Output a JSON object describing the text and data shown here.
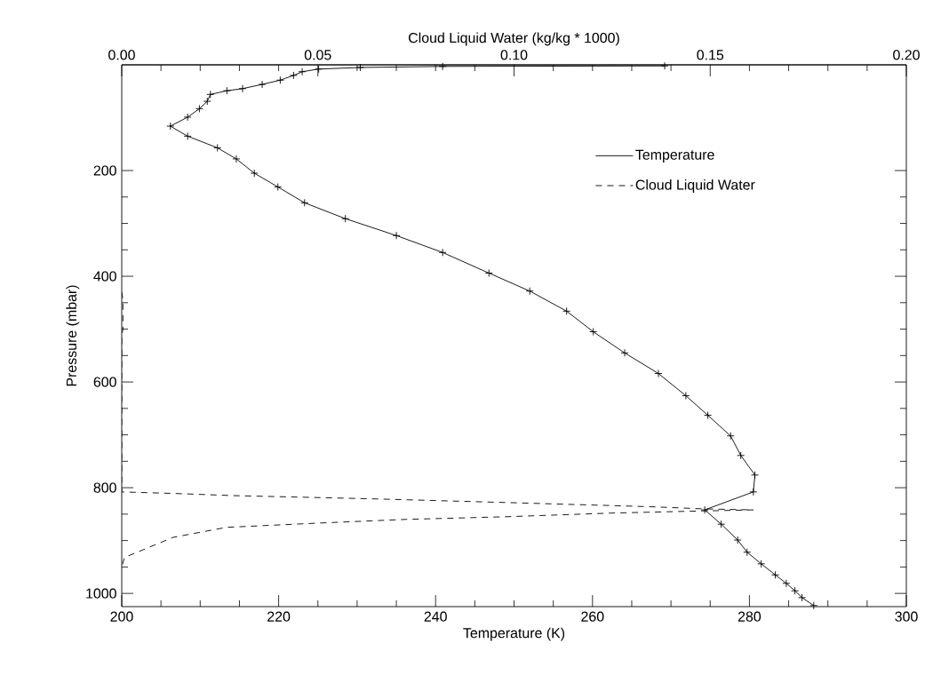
{
  "chart_data": {
    "type": "line",
    "xlabel": "Temperature (K)",
    "ylabel": "Pressure (mbar)",
    "x2label": "Cloud Liquid Water (kg/kg * 1000)",
    "xlim": [
      200,
      300
    ],
    "xticks": [
      200,
      220,
      240,
      260,
      280,
      300
    ],
    "x2lim": [
      0,
      0.2
    ],
    "x2ticks": [
      {
        "value": 0,
        "label": "0.00"
      },
      {
        "value": 0.05,
        "label": "0.05"
      },
      {
        "value": 0.1,
        "label": "0.10"
      },
      {
        "value": 0.15,
        "label": "0.15"
      },
      {
        "value": 0.2,
        "label": "0.20"
      }
    ],
    "ylim": [
      1025,
      0
    ],
    "yticks": [
      200,
      400,
      600,
      800,
      1000
    ],
    "legend": "top right",
    "grid": false,
    "series": [
      {
        "name": "Temperature",
        "color": "#000000",
        "marker": "cross",
        "line_style": "solid",
        "x": [
          269.2,
          240.9,
          230.4,
          225.1,
          223.0,
          221.9,
          220.2,
          217.9,
          215.4,
          213.4,
          211.3,
          210.9,
          209.9,
          208.4,
          206.2,
          208.4,
          212.2,
          214.6,
          216.9,
          219.9,
          223.3,
          228.5,
          235.0,
          240.9,
          246.8,
          252.0,
          256.7,
          260.1,
          264.1,
          268.4,
          271.9,
          274.7,
          277.6,
          278.9,
          280.7,
          280.5,
          274.3,
          276.4,
          278.5,
          279.7,
          281.5,
          283.3,
          284.7,
          285.8,
          286.7,
          288.2
        ],
        "values": [
          2,
          3,
          5,
          8,
          13,
          20,
          29,
          37,
          45,
          49,
          56,
          69,
          83,
          99,
          116,
          135,
          157,
          178,
          205,
          231,
          261,
          291,
          323,
          355,
          394,
          428,
          466,
          505,
          545,
          584,
          626,
          663,
          702,
          739,
          776,
          808,
          842,
          869,
          899,
          922,
          944,
          965,
          981,
          995,
          1008,
          1023
        ]
      },
      {
        "name": "Cloud Liquid Water",
        "color": "#000000",
        "marker": "none",
        "line_style": "dashed",
        "axis": "x2",
        "x": [
          0,
          0.0003,
          0.0003,
          0,
          0,
          0.0138,
          0.0285,
          0.0636,
          0.0978,
          0.1348,
          0.148,
          0.161,
          0.148,
          0.125,
          0.0978,
          0.0723,
          0.05,
          0.0267,
          0.0131,
          0.0007,
          0
        ],
        "values": [
          430,
          445,
          500,
          510,
          808,
          811,
          815,
          821,
          828,
          836,
          840,
          842,
          844,
          848,
          855,
          860,
          867,
          875,
          894,
          932,
          950
        ]
      }
    ]
  }
}
